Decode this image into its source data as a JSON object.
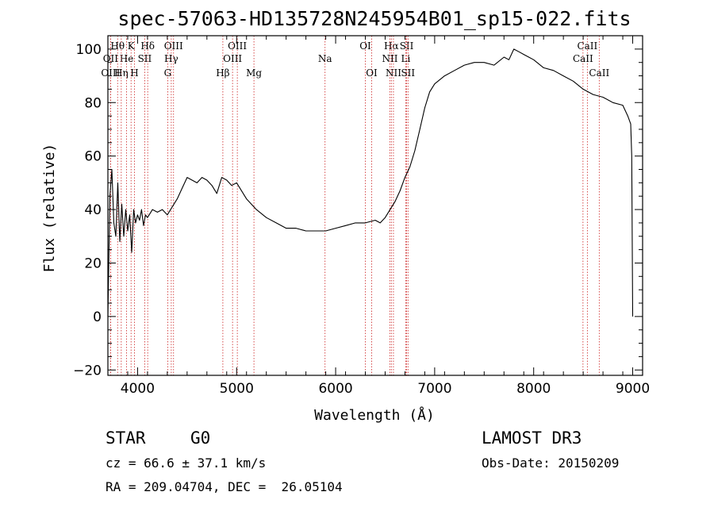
{
  "chart_data": {
    "type": "line",
    "title": "spec-57063-HD135728N245954B01_sp15-022.fits",
    "xlabel": "Wavelength (Å)",
    "ylabel": "Flux (relative)",
    "xlim": [
      3700,
      9100
    ],
    "ylim": [
      -22,
      105
    ],
    "xticks": [
      4000,
      5000,
      6000,
      7000,
      8000,
      9000
    ],
    "yticks": [
      -20,
      0,
      20,
      40,
      60,
      80,
      100
    ],
    "xtick_labels": [
      "4000",
      "5000",
      "6000",
      "7000",
      "8000",
      "9000"
    ],
    "ytick_labels": [
      "−20",
      "0",
      "20",
      "40",
      "60",
      "80",
      "100"
    ],
    "series": [
      {
        "name": "flux",
        "x": [
          3700,
          3720,
          3740,
          3760,
          3780,
          3800,
          3820,
          3840,
          3860,
          3880,
          3900,
          3920,
          3940,
          3960,
          3980,
          4000,
          4020,
          4040,
          4060,
          4080,
          4100,
          4150,
          4200,
          4250,
          4300,
          4350,
          4400,
          4450,
          4500,
          4550,
          4600,
          4650,
          4700,
          4750,
          4800,
          4850,
          4900,
          4950,
          5000,
          5100,
          5200,
          5300,
          5400,
          5500,
          5600,
          5700,
          5800,
          5900,
          6000,
          6100,
          6200,
          6300,
          6400,
          6450,
          6500,
          6550,
          6600,
          6650,
          6700,
          6750,
          6800,
          6850,
          6900,
          6950,
          7000,
          7100,
          7200,
          7300,
          7400,
          7500,
          7600,
          7700,
          7750,
          7800,
          7850,
          7900,
          7950,
          8000,
          8100,
          8200,
          8300,
          8400,
          8500,
          8600,
          8700,
          8800,
          8900,
          8950,
          8980,
          8990,
          9000
        ],
        "y": [
          0,
          45,
          55,
          35,
          30,
          50,
          28,
          42,
          30,
          40,
          32,
          38,
          24,
          40,
          35,
          38,
          36,
          40,
          34,
          38,
          37,
          40,
          39,
          40,
          38,
          41,
          44,
          48,
          52,
          51,
          50,
          52,
          51,
          49,
          46,
          52,
          51,
          49,
          50,
          44,
          40,
          37,
          35,
          33,
          33,
          32,
          32,
          32,
          33,
          34,
          35,
          35,
          36,
          35,
          37,
          40,
          43,
          47,
          52,
          56,
          62,
          70,
          78,
          84,
          87,
          90,
          92,
          94,
          95,
          95,
          94,
          97,
          96,
          100,
          99,
          98,
          97,
          96,
          93,
          92,
          90,
          88,
          85,
          83,
          82,
          80,
          79,
          75,
          72,
          60,
          0
        ]
      }
    ],
    "spectral_lines": [
      {
        "label": "Hθ",
        "x": 3798,
        "row": 0
      },
      {
        "label": "K",
        "x": 3934,
        "row": 0
      },
      {
        "label": "Hδ",
        "x": 4102,
        "row": 0
      },
      {
        "label": "OIII",
        "x": 4363,
        "row": 0
      },
      {
        "label": "OIII",
        "x": 5007,
        "row": 0
      },
      {
        "label": "OI",
        "x": 6300,
        "row": 0
      },
      {
        "label": "Hα",
        "x": 6563,
        "row": 0
      },
      {
        "label": "SII",
        "x": 6717,
        "row": 0
      },
      {
        "label": "CaII",
        "x": 8542,
        "row": 0
      },
      {
        "label": "OII",
        "x": 3727,
        "row": 1
      },
      {
        "label": "He",
        "x": 3889,
        "row": 1
      },
      {
        "label": "SII",
        "x": 4072,
        "row": 1
      },
      {
        "label": "Hγ",
        "x": 4340,
        "row": 1
      },
      {
        "label": "OIII",
        "x": 4959,
        "row": 1
      },
      {
        "label": "Na",
        "x": 5893,
        "row": 1
      },
      {
        "label": "NII",
        "x": 6548,
        "row": 1
      },
      {
        "label": "Li",
        "x": 6708,
        "row": 1
      },
      {
        "label": "CaII",
        "x": 8498,
        "row": 1
      },
      {
        "label": "OIII",
        "x": 3727,
        "row": 2
      },
      {
        "label": "Hη",
        "x": 3835,
        "row": 2
      },
      {
        "label": "H",
        "x": 3968,
        "row": 2
      },
      {
        "label": "G",
        "x": 4304,
        "row": 2
      },
      {
        "label": "Hβ",
        "x": 4861,
        "row": 2
      },
      {
        "label": "Mg",
        "x": 5175,
        "row": 2
      },
      {
        "label": "OI",
        "x": 6364,
        "row": 2
      },
      {
        "label": "NII",
        "x": 6584,
        "row": 2
      },
      {
        "label": "SII",
        "x": 6731,
        "row": 2
      },
      {
        "label": "CaII",
        "x": 8662,
        "row": 2
      }
    ],
    "line_color": "#cc2222"
  },
  "info": {
    "class_label": "STAR",
    "subclass": "G0",
    "survey": "LAMOST DR3",
    "redshift_text": "cz = 66.6 ± 37.1 km/s",
    "obs_date": "Obs-Date: 20150209",
    "coords_text": "RA = 209.04704, DEC =  26.05104"
  }
}
